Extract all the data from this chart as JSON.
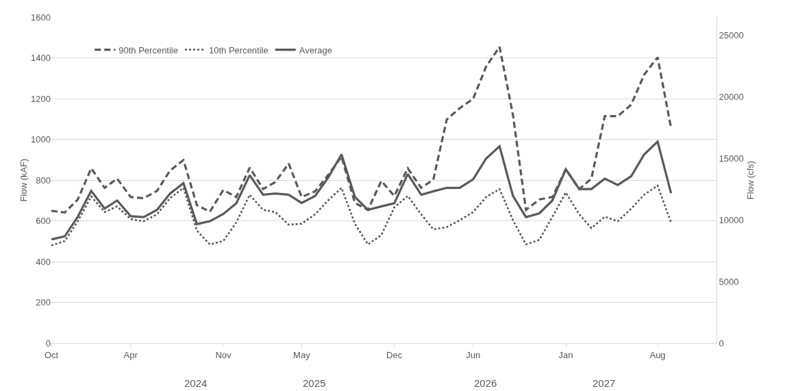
{
  "chart_data": {
    "type": "line",
    "xlabel": null,
    "ylabel": "Flow (kAF)",
    "y2label": "Flow (cfs)",
    "x": [
      "2023-10",
      "2023-11",
      "2023-12",
      "2024-01",
      "2024-02",
      "2024-03",
      "2024-04",
      "2024-05",
      "2024-06",
      "2024-07",
      "2024-08",
      "2024-09",
      "2024-10",
      "2024-11",
      "2024-12",
      "2025-01",
      "2025-02",
      "2025-03",
      "2025-04",
      "2025-05",
      "2025-06",
      "2025-07",
      "2025-08",
      "2025-09",
      "2025-10",
      "2025-11",
      "2025-12",
      "2026-01",
      "2026-02",
      "2026-03",
      "2026-04",
      "2026-05",
      "2026-06",
      "2026-07",
      "2026-08",
      "2026-09",
      "2026-10",
      "2026-11",
      "2026-12",
      "2027-01",
      "2027-02",
      "2027-03",
      "2027-04",
      "2027-05",
      "2027-06",
      "2027-07",
      "2027-08",
      "2027-09"
    ],
    "series": [
      {
        "name": "90th Percentile",
        "color": "#595959",
        "line_style": "dashed",
        "values": [
          649,
          641,
          705,
          858,
          762,
          807,
          717,
          711,
          747,
          847,
          898,
          677,
          645,
          751,
          717,
          861,
          756,
          790,
          881,
          717,
          745,
          824,
          915,
          688,
          654,
          796,
          722,
          858,
          762,
          802,
          1097,
          1153,
          1199,
          1357,
          1454,
          1119,
          654,
          705,
          717,
          853,
          756,
          807,
          1114,
          1114,
          1170,
          1318,
          1403,
          1057
        ]
      },
      {
        "name": "10th Percentile",
        "color": "#595959",
        "line_style": "dotted",
        "values": [
          479,
          501,
          598,
          720,
          643,
          671,
          609,
          598,
          632,
          711,
          762,
          552,
          484,
          501,
          592,
          728,
          654,
          643,
          581,
          586,
          632,
          700,
          762,
          586,
          484,
          530,
          666,
          722,
          632,
          558,
          569,
          603,
          643,
          717,
          756,
          603,
          484,
          507,
          620,
          739,
          632,
          564,
          620,
          598,
          660,
          728,
          773,
          592
        ]
      },
      {
        "name": "Average",
        "color": "#595959",
        "line_style": "solid",
        "values": [
          509,
          524,
          620,
          747,
          660,
          700,
          623,
          618,
          654,
          734,
          785,
          584,
          598,
          634,
          686,
          824,
          728,
          734,
          728,
          688,
          722,
          811,
          926,
          717,
          654,
          671,
          686,
          830,
          728,
          745,
          762,
          762,
          804,
          906,
          966,
          722,
          618,
          637,
          700,
          853,
          756,
          756,
          807,
          776,
          819,
          926,
          989,
          736
        ]
      }
    ],
    "xlim": [
      "2023-10",
      "2027-12-15"
    ],
    "xticks": [
      {
        "value": "2023-10",
        "label": "Oct"
      },
      {
        "value": "2024-04",
        "label": "Apr"
      },
      {
        "value": "2024-11",
        "label": "Nov"
      },
      {
        "value": "2025-05",
        "label": "May"
      },
      {
        "value": "2025-12",
        "label": "Dec"
      },
      {
        "value": "2026-06",
        "label": "Jun"
      },
      {
        "value": "2027-01",
        "label": "Jan"
      },
      {
        "value": "2027-08",
        "label": "Aug"
      }
    ],
    "ylim": [
      0,
      1600
    ],
    "yticks": [
      0,
      200,
      400,
      600,
      800,
      1000,
      1200,
      1400,
      1600
    ],
    "y2lim": [
      0,
      26450
    ],
    "y2ticks": [
      0,
      5000,
      10000,
      15000,
      20000,
      25000
    ],
    "annotations": [
      "2024",
      "2025",
      "2026",
      "2027"
    ],
    "grid": "y",
    "legend": "top left",
    "marker": "none"
  }
}
